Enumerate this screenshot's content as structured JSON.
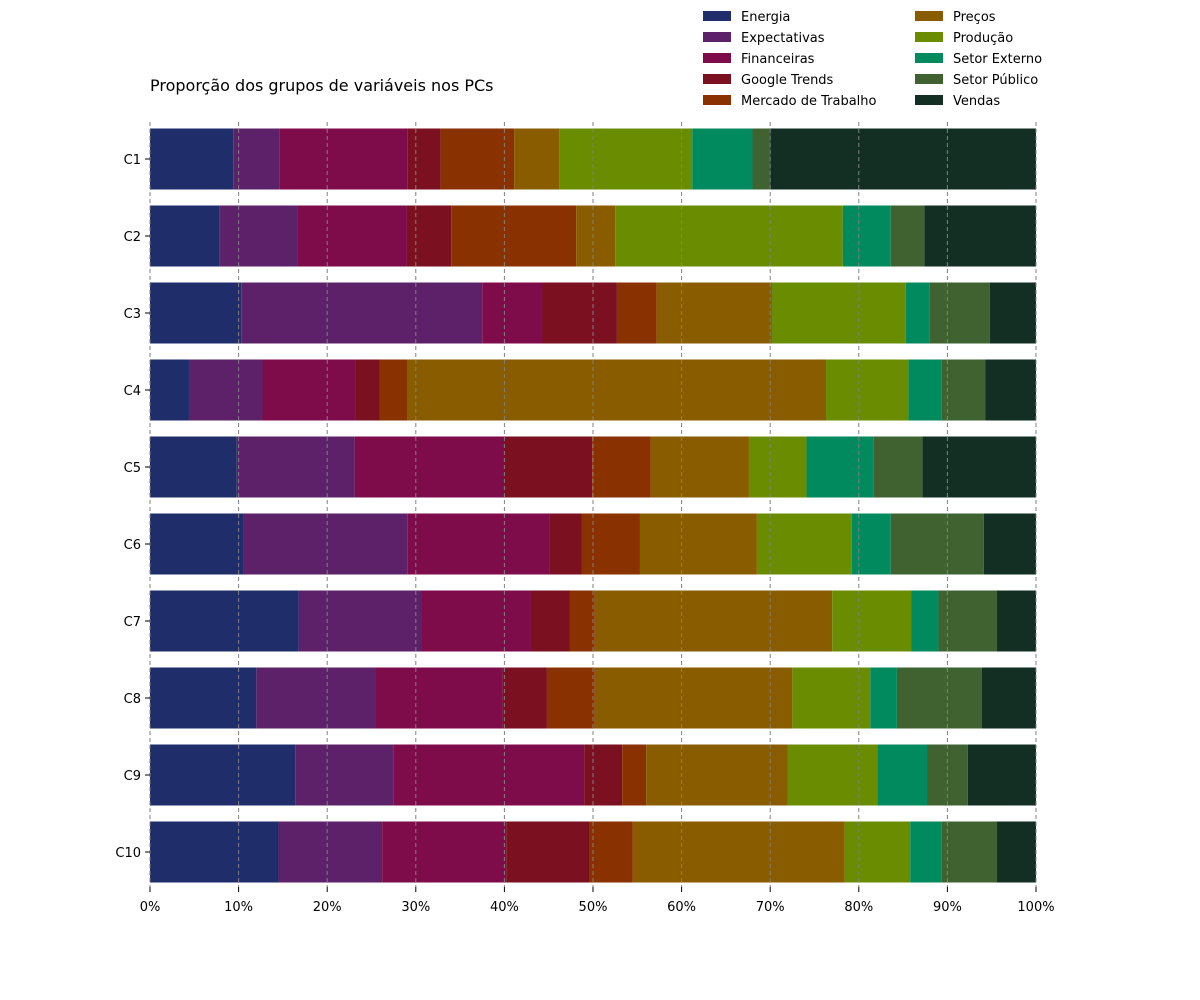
{
  "chart_data": {
    "type": "bar",
    "orientation": "horizontal",
    "stacked": true,
    "normalized": true,
    "title": "Proporção dos grupos de variáveis nos PCs",
    "xlabel": "",
    "ylabel": "",
    "xlim": [
      0,
      100
    ],
    "x_ticks": [
      "0%",
      "10%",
      "20%",
      "30%",
      "40%",
      "50%",
      "60%",
      "70%",
      "80%",
      "90%",
      "100%"
    ],
    "grid": "vertical dashed",
    "legend_position": "top-right",
    "categories": [
      "C1",
      "C2",
      "C3",
      "C4",
      "C5",
      "C6",
      "C7",
      "C8",
      "C9",
      "C10"
    ],
    "series": [
      {
        "name": "Energia",
        "color": "#1f2d6b",
        "values": [
          9.4,
          7.8,
          10.3,
          4.4,
          9.8,
          10.5,
          16.8,
          12.0,
          16.4,
          14.5
        ]
      },
      {
        "name": "Expectativas",
        "color": "#5c2168",
        "values": [
          5.2,
          8.8,
          27.2,
          8.3,
          13.3,
          18.6,
          13.9,
          13.4,
          11.1,
          11.7
        ]
      },
      {
        "name": "Financeiras",
        "color": "#7e0c4a",
        "values": [
          14.5,
          12.4,
          6.8,
          10.5,
          16.8,
          16.0,
          12.3,
          14.4,
          21.5,
          14.0
        ]
      },
      {
        "name": "Google Trends",
        "color": "#7a1020",
        "values": [
          3.7,
          5.0,
          8.4,
          2.7,
          10.0,
          3.6,
          4.4,
          5.0,
          4.3,
          9.4
        ]
      },
      {
        "name": "Mercado de Trabalho",
        "color": "#8a3100",
        "values": [
          8.3,
          14.1,
          4.5,
          3.2,
          6.6,
          6.6,
          2.8,
          5.4,
          2.7,
          4.9
        ]
      },
      {
        "name": "Preços",
        "color": "#8a5c00",
        "values": [
          5.1,
          4.4,
          13.0,
          47.2,
          11.1,
          13.2,
          26.8,
          22.3,
          16.0,
          23.9
        ]
      },
      {
        "name": "Produção",
        "color": "#6a8c00",
        "values": [
          15.0,
          25.7,
          15.1,
          9.3,
          6.5,
          10.7,
          8.9,
          8.8,
          10.1,
          7.4
        ]
      },
      {
        "name": "Setor Externo",
        "color": "#008a5e",
        "values": [
          6.8,
          5.4,
          2.7,
          3.7,
          7.6,
          4.4,
          3.1,
          3.0,
          5.6,
          3.5
        ]
      },
      {
        "name": "Setor Público",
        "color": "#3f6230",
        "values": [
          2.0,
          3.8,
          6.8,
          5.0,
          5.5,
          10.5,
          6.6,
          9.6,
          4.6,
          6.3
        ]
      },
      {
        "name": "Vendas",
        "color": "#132e23",
        "values": [
          30.0,
          12.6,
          5.2,
          5.7,
          12.8,
          5.9,
          4.4,
          6.1,
          7.7,
          4.4
        ]
      }
    ]
  }
}
